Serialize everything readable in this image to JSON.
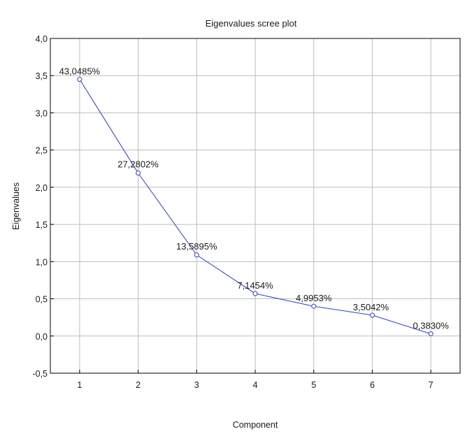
{
  "chart_data": {
    "type": "line",
    "title": "Eigenvalues scree plot",
    "xlabel": "Component",
    "ylabel": "Eigenvalues",
    "x": [
      1,
      2,
      3,
      4,
      5,
      6,
      7
    ],
    "x_tick_labels": [
      "1",
      "2",
      "3",
      "4",
      "5",
      "6",
      "7"
    ],
    "y_tick_labels": [
      "-0,5",
      "0,0",
      "0,5",
      "1,0",
      "1,5",
      "2,0",
      "2,5",
      "3,0",
      "3,5",
      "4,0"
    ],
    "y_ticks": [
      -0.5,
      0,
      0.5,
      1,
      1.5,
      2,
      2.5,
      3,
      3.5,
      4
    ],
    "xlim": [
      0.5,
      7.5
    ],
    "ylim": [
      -0.5,
      4.0
    ],
    "grid": true,
    "series": [
      {
        "values": [
          3.45,
          2.19,
          1.09,
          0.57,
          0.4,
          0.28,
          0.03
        ],
        "labels": [
          "43,0485%",
          "27,2802%",
          "13,5895%",
          "7,1454%",
          "4,9953%",
          "3,5042%",
          "0,3830%"
        ],
        "color": "#2f3fd0"
      }
    ]
  }
}
